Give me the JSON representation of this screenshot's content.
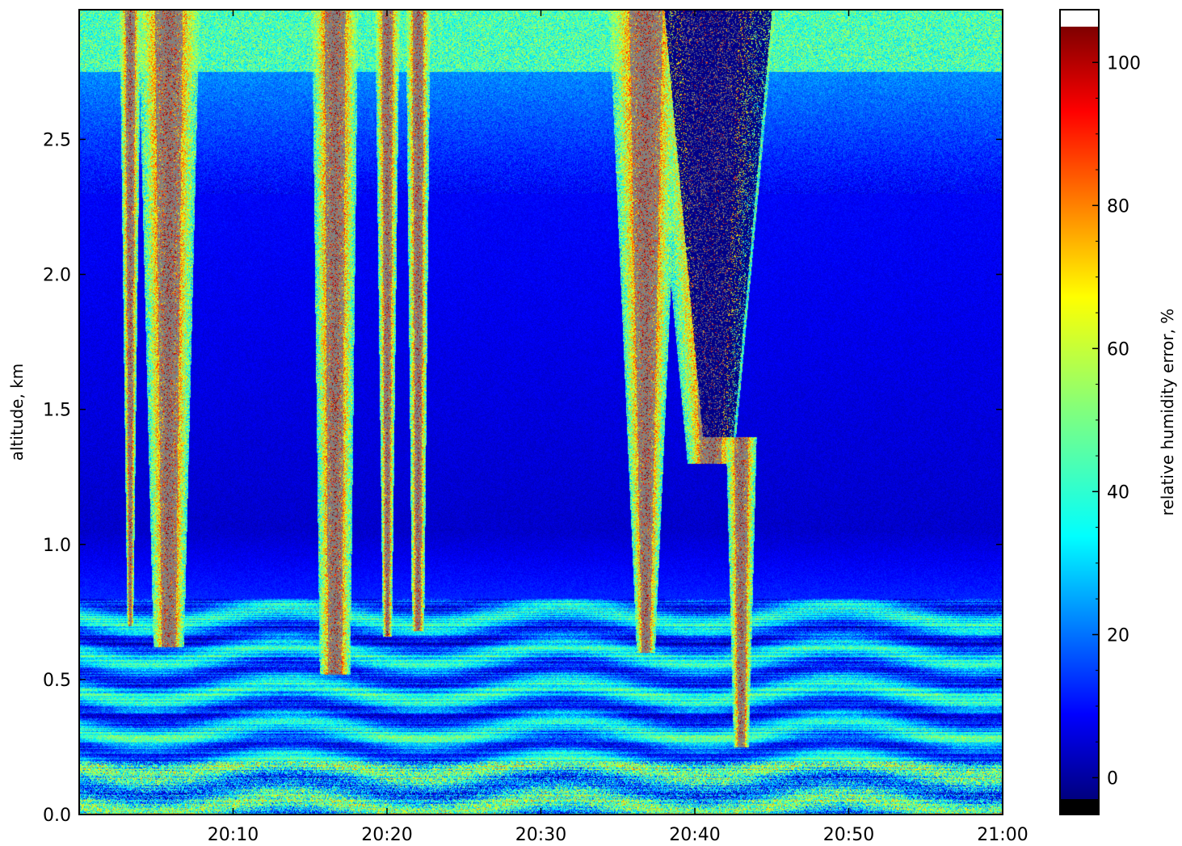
{
  "chart_data": {
    "type": "heatmap",
    "title": "",
    "xlabel": "",
    "ylabel": "altitude, km",
    "colorbar_label": "relative humidity error, %",
    "x_tick_labels": [
      "20:10",
      "20:20",
      "20:30",
      "20:40",
      "20:50",
      "21:00"
    ],
    "x_tick_values_min": [
      10,
      20,
      30,
      40,
      50,
      60
    ],
    "xlim_min": [
      0,
      60
    ],
    "y_tick_labels": [
      "0.0",
      "0.5",
      "1.0",
      "1.5",
      "2.0",
      "2.5"
    ],
    "y_tick_values": [
      0.0,
      0.5,
      1.0,
      1.5,
      2.0,
      2.5
    ],
    "ylim": [
      0,
      2.98
    ],
    "colorbar_ticks": [
      "0",
      "20",
      "40",
      "60",
      "80",
      "100"
    ],
    "colorbar_tick_values": [
      0,
      20,
      40,
      60,
      80,
      100
    ],
    "clim": [
      -3,
      105
    ],
    "colormap": "jet",
    "over_color": "#ffffff",
    "under_color": "#000000",
    "missing_color": "#808080",
    "background_level_pct": {
      "above_1km": 5,
      "boundary_layer": 30,
      "top_edge": 40
    },
    "plumes": [
      {
        "name": "plume-1",
        "x_center_min": 5.8,
        "half_width_min": [
          1.0,
          2.0
        ],
        "bottom_km": 0.62,
        "top_km": 2.98
      },
      {
        "name": "plume-2",
        "x_center_min": 16.6,
        "half_width_min": [
          1.0,
          1.5
        ],
        "bottom_km": 0.52,
        "top_km": 2.98
      },
      {
        "name": "plume-3",
        "x_center_min": 22.0,
        "half_width_min": [
          0.4,
          0.8
        ],
        "bottom_km": 0.68,
        "top_km": 2.98
      },
      {
        "name": "plume-4",
        "x_center_min": 36.8,
        "half_width_min": [
          0.6,
          2.4
        ],
        "bottom_km": 0.6,
        "top_km": 2.98
      },
      {
        "name": "plume-5",
        "x_center_min": 41.0,
        "half_width_min": [
          1.5,
          4.2
        ],
        "bottom_km": 1.3,
        "top_km": 2.98
      },
      {
        "name": "plume-6",
        "x_center_min": 43.0,
        "half_width_min": [
          0.5,
          1.0
        ],
        "bottom_km": 0.25,
        "top_km": 1.4
      },
      {
        "name": "plume-7",
        "x_center_min": 20.0,
        "half_width_min": [
          0.3,
          0.8
        ],
        "bottom_km": 0.66,
        "top_km": 2.98
      },
      {
        "name": "plume-8",
        "x_center_min": 3.3,
        "half_width_min": [
          0.2,
          0.7
        ],
        "bottom_km": 0.7,
        "top_km": 2.98
      }
    ],
    "over_range_core": {
      "x_center_min": 41.5,
      "half_width_min": [
        1.0,
        3.5
      ],
      "bottom_km": 1.4,
      "top_km": 2.98
    }
  }
}
